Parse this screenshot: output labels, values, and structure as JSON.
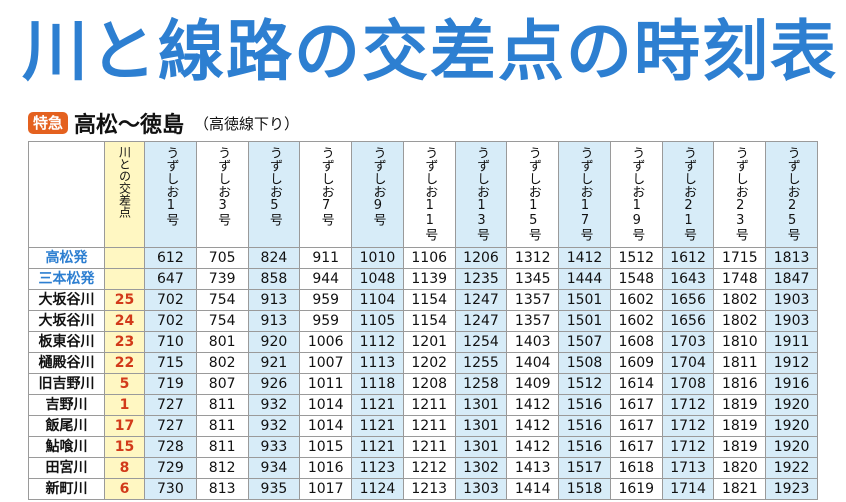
{
  "title": "川と線路の交差点の時刻表",
  "subtitle": {
    "badge": "特急",
    "route": "高松〜徳島",
    "line": "（高徳線下り）"
  },
  "table": {
    "point_header": "川との交差点",
    "trains": [
      "うずしお1号",
      "うずしお3号",
      "うずしお5号",
      "うずしお7号",
      "うずしお9号",
      "うずしお11号",
      "うずしお13号",
      "うずしお15号",
      "うずしお17号",
      "うずしお19号",
      "うずしお21号",
      "うずしお23号",
      "うずしお25号"
    ],
    "rows": [
      {
        "station": "高松発",
        "point": "",
        "origin": true,
        "times": [
          "612",
          "705",
          "824",
          "911",
          "1010",
          "1106",
          "1206",
          "1312",
          "1412",
          "1512",
          "1612",
          "1715",
          "1813"
        ]
      },
      {
        "station": "三本松発",
        "point": "",
        "origin": true,
        "times": [
          "647",
          "739",
          "858",
          "944",
          "1048",
          "1139",
          "1235",
          "1345",
          "1444",
          "1548",
          "1643",
          "1748",
          "1847"
        ]
      },
      {
        "station": "大坂谷川",
        "point": "25",
        "origin": false,
        "times": [
          "702",
          "754",
          "913",
          "959",
          "1104",
          "1154",
          "1247",
          "1357",
          "1501",
          "1602",
          "1656",
          "1802",
          "1903"
        ]
      },
      {
        "station": "大坂谷川",
        "point": "24",
        "origin": false,
        "times": [
          "702",
          "754",
          "913",
          "959",
          "1105",
          "1154",
          "1247",
          "1357",
          "1501",
          "1602",
          "1656",
          "1802",
          "1903"
        ]
      },
      {
        "station": "板東谷川",
        "point": "23",
        "origin": false,
        "times": [
          "710",
          "801",
          "920",
          "1006",
          "1112",
          "1201",
          "1254",
          "1403",
          "1507",
          "1608",
          "1703",
          "1810",
          "1911"
        ]
      },
      {
        "station": "樋殿谷川",
        "point": "22",
        "origin": false,
        "times": [
          "715",
          "802",
          "921",
          "1007",
          "1113",
          "1202",
          "1255",
          "1404",
          "1508",
          "1609",
          "1704",
          "1811",
          "1912"
        ]
      },
      {
        "station": "旧吉野川",
        "point": "5",
        "origin": false,
        "times": [
          "719",
          "807",
          "926",
          "1011",
          "1118",
          "1208",
          "1258",
          "1409",
          "1512",
          "1614",
          "1708",
          "1816",
          "1916"
        ]
      },
      {
        "station": "吉野川",
        "point": "1",
        "origin": false,
        "times": [
          "727",
          "811",
          "932",
          "1014",
          "1121",
          "1211",
          "1301",
          "1412",
          "1516",
          "1617",
          "1712",
          "1819",
          "1920"
        ]
      },
      {
        "station": "飯尾川",
        "point": "17",
        "origin": false,
        "times": [
          "727",
          "811",
          "932",
          "1014",
          "1121",
          "1211",
          "1301",
          "1412",
          "1516",
          "1617",
          "1712",
          "1819",
          "1920"
        ]
      },
      {
        "station": "鮎喰川",
        "point": "15",
        "origin": false,
        "times": [
          "728",
          "811",
          "933",
          "1015",
          "1121",
          "1211",
          "1301",
          "1412",
          "1516",
          "1617",
          "1712",
          "1819",
          "1920"
        ]
      },
      {
        "station": "田宮川",
        "point": "8",
        "origin": false,
        "times": [
          "729",
          "812",
          "934",
          "1016",
          "1123",
          "1212",
          "1302",
          "1413",
          "1517",
          "1618",
          "1713",
          "1820",
          "1922"
        ]
      },
      {
        "station": "新町川",
        "point": "6",
        "origin": false,
        "times": [
          "730",
          "813",
          "935",
          "1017",
          "1124",
          "1213",
          "1303",
          "1414",
          "1518",
          "1619",
          "1714",
          "1821",
          "1923"
        ]
      }
    ]
  },
  "colors": {
    "title": "#2d7fd1",
    "badge": "#e4611f",
    "point": "#d23a1a",
    "highlight_col": "#d7ecf8",
    "point_col": "#fff7c2"
  }
}
